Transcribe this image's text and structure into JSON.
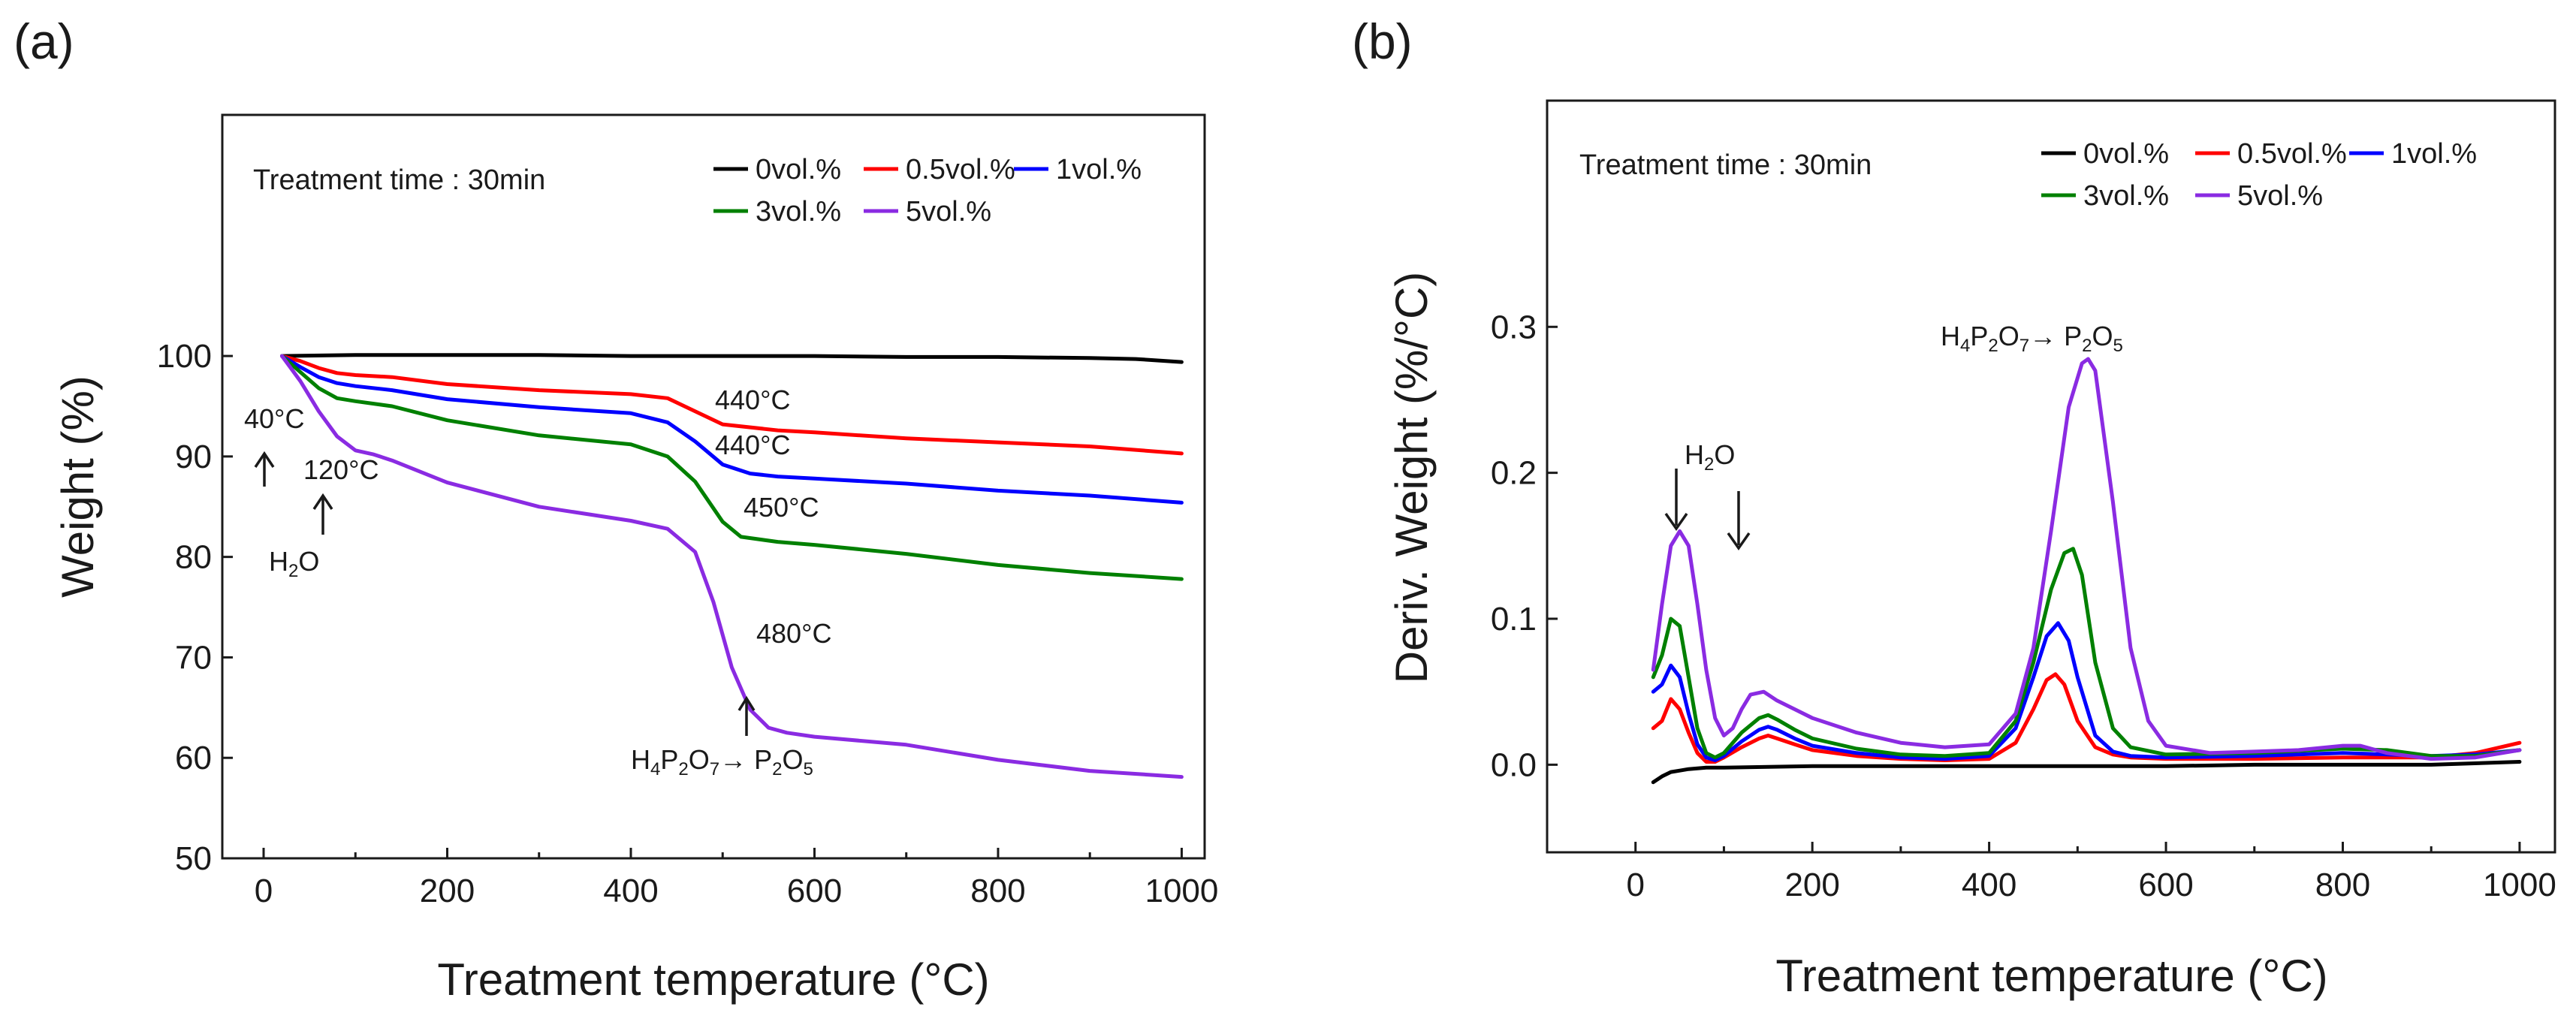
{
  "chart_data": [
    {
      "type": "line",
      "panel_label": "(a)",
      "title": "",
      "xlabel": "Treatment temperature (°C)",
      "ylabel": "Weight (%)",
      "xlim": [
        -45,
        1025
      ],
      "ylim": [
        50,
        124
      ],
      "xticks": [
        0,
        200,
        400,
        600,
        800,
        1000
      ],
      "yticks": [
        50,
        60,
        70,
        80,
        90,
        100
      ],
      "grid": false,
      "legend_position": "top-right",
      "legend_title": "Treatment time : 30min",
      "series": [
        {
          "name": "0vol.%",
          "color": "#000000",
          "x": [
            20,
            100,
            200,
            300,
            400,
            500,
            600,
            700,
            800,
            900,
            950,
            1000
          ],
          "y": [
            100,
            100.1,
            100.1,
            100.1,
            100,
            100,
            100,
            99.9,
            99.9,
            99.8,
            99.7,
            99.4
          ]
        },
        {
          "name": "0.5vol.%",
          "color": "#ff0000",
          "x": [
            20,
            40,
            60,
            80,
            100,
            140,
            200,
            300,
            400,
            440,
            470,
            500,
            560,
            600,
            700,
            800,
            900,
            1000
          ],
          "y": [
            100,
            99.5,
            98.8,
            98.3,
            98.1,
            97.9,
            97.2,
            96.6,
            96.2,
            95.8,
            94.5,
            93.2,
            92.6,
            92.4,
            91.8,
            91.4,
            91,
            90.3
          ]
        },
        {
          "name": "1vol.%",
          "color": "#0000ff",
          "x": [
            20,
            40,
            60,
            80,
            100,
            140,
            200,
            300,
            400,
            440,
            470,
            500,
            530,
            560,
            600,
            700,
            800,
            900,
            1000
          ],
          "y": [
            100,
            98.9,
            97.9,
            97.3,
            97,
            96.6,
            95.7,
            94.9,
            94.3,
            93.4,
            91.5,
            89.2,
            88.3,
            88,
            87.8,
            87.3,
            86.6,
            86.1,
            85.4
          ]
        },
        {
          "name": "3vol.%",
          "color": "#008000",
          "x": [
            20,
            40,
            60,
            80,
            100,
            140,
            200,
            300,
            400,
            440,
            470,
            500,
            520,
            560,
            600,
            700,
            800,
            900,
            1000
          ],
          "y": [
            100,
            98.4,
            96.8,
            95.8,
            95.5,
            95,
            93.6,
            92.1,
            91.2,
            90,
            87.5,
            83.5,
            82,
            81.5,
            81.2,
            80.3,
            79.2,
            78.4,
            77.8
          ]
        },
        {
          "name": "5vol.%",
          "color": "#8a2be2",
          "x": [
            20,
            40,
            60,
            80,
            100,
            120,
            140,
            200,
            300,
            400,
            440,
            470,
            490,
            510,
            530,
            550,
            570,
            600,
            700,
            800,
            900,
            1000
          ],
          "y": [
            100,
            97.5,
            94.5,
            92,
            90.6,
            90.2,
            89.6,
            87.4,
            85,
            83.6,
            82.8,
            80.5,
            75.5,
            69,
            64.8,
            63,
            62.5,
            62.1,
            61.3,
            59.8,
            58.7,
            58.1
          ]
        }
      ],
      "annotations": [
        {
          "text": "440°C",
          "x": 500,
          "y": 93.2
        },
        {
          "text": "440°C",
          "x": 500,
          "y": 89.2
        },
        {
          "text": "450°C",
          "x": 520,
          "y": 82
        },
        {
          "text": "480°C",
          "x": 530,
          "y": 64.8
        },
        {
          "text": "40°C",
          "x": 40,
          "y": 98
        },
        {
          "text": "120°C",
          "x": 120,
          "y": 90.2
        },
        {
          "text": "H2O"
        },
        {
          "text": "H4P2O7→ P2O5"
        }
      ]
    },
    {
      "type": "line",
      "panel_label": "(b)",
      "title": "",
      "xlabel": "Treatment temperature (°C)",
      "ylabel": "Deriv. Weight (%/°C)",
      "xlim": [
        -100,
        1040
      ],
      "ylim": [
        -0.06,
        0.455
      ],
      "xticks": [
        0,
        200,
        400,
        600,
        800,
        1000
      ],
      "yticks": [
        0.0,
        0.1,
        0.2,
        0.3
      ],
      "grid": false,
      "legend_position": "top-right",
      "legend_title": "Treatment time : 30min",
      "series": [
        {
          "name": "0vol.%",
          "color": "#000000",
          "x": [
            20,
            30,
            40,
            50,
            60,
            80,
            100,
            200,
            300,
            400,
            500,
            600,
            700,
            800,
            900,
            1000
          ],
          "y": [
            -0.012,
            -0.008,
            -0.005,
            -0.004,
            -0.003,
            -0.002,
            -0.002,
            -0.001,
            -0.001,
            -0.001,
            -0.001,
            -0.001,
            0,
            0,
            0,
            0.002
          ]
        },
        {
          "name": "0.5vol.%",
          "color": "#ff0000",
          "x": [
            20,
            30,
            40,
            50,
            60,
            70,
            80,
            90,
            100,
            120,
            140,
            150,
            160,
            180,
            200,
            250,
            300,
            350,
            400,
            430,
            450,
            465,
            475,
            485,
            500,
            520,
            540,
            560,
            600,
            700,
            800,
            900,
            950,
            1000
          ],
          "y": [
            0.025,
            0.03,
            0.045,
            0.038,
            0.022,
            0.008,
            0.002,
            0.002,
            0.005,
            0.012,
            0.018,
            0.02,
            0.018,
            0.014,
            0.01,
            0.006,
            0.004,
            0.003,
            0.004,
            0.015,
            0.038,
            0.058,
            0.062,
            0.055,
            0.03,
            0.012,
            0.007,
            0.005,
            0.004,
            0.004,
            0.005,
            0.005,
            0.008,
            0.015
          ]
        },
        {
          "name": "1vol.%",
          "color": "#0000ff",
          "x": [
            20,
            30,
            40,
            50,
            60,
            70,
            80,
            90,
            100,
            120,
            140,
            150,
            160,
            180,
            200,
            250,
            300,
            350,
            400,
            430,
            450,
            465,
            478,
            490,
            500,
            520,
            540,
            560,
            600,
            700,
            800,
            900,
            950,
            1000
          ],
          "y": [
            0.05,
            0.055,
            0.068,
            0.06,
            0.035,
            0.014,
            0.005,
            0.003,
            0.006,
            0.016,
            0.024,
            0.026,
            0.024,
            0.018,
            0.013,
            0.008,
            0.005,
            0.004,
            0.006,
            0.025,
            0.06,
            0.088,
            0.097,
            0.085,
            0.06,
            0.02,
            0.009,
            0.006,
            0.005,
            0.006,
            0.008,
            0.006,
            0.007,
            0.01
          ]
        },
        {
          "name": "3vol.%",
          "color": "#008000",
          "x": [
            20,
            30,
            40,
            50,
            60,
            70,
            80,
            90,
            100,
            120,
            140,
            150,
            160,
            180,
            200,
            250,
            300,
            350,
            400,
            430,
            450,
            470,
            485,
            495,
            505,
            520,
            540,
            560,
            600,
            700,
            800,
            850,
            900,
            950,
            1000
          ],
          "y": [
            0.06,
            0.075,
            0.1,
            0.095,
            0.06,
            0.025,
            0.008,
            0.005,
            0.008,
            0.022,
            0.032,
            0.034,
            0.031,
            0.024,
            0.018,
            0.011,
            0.007,
            0.006,
            0.008,
            0.03,
            0.07,
            0.12,
            0.145,
            0.148,
            0.13,
            0.07,
            0.025,
            0.012,
            0.007,
            0.008,
            0.011,
            0.01,
            0.006,
            0.006,
            0.01
          ]
        },
        {
          "name": "5vol.%",
          "color": "#8a2be2",
          "x": [
            20,
            30,
            40,
            50,
            60,
            70,
            80,
            90,
            100,
            110,
            120,
            130,
            145,
            160,
            180,
            200,
            250,
            300,
            350,
            400,
            430,
            450,
            470,
            490,
            505,
            512,
            520,
            540,
            560,
            580,
            600,
            650,
            700,
            750,
            800,
            820,
            850,
            900,
            950,
            1000
          ],
          "y": [
            0.065,
            0.11,
            0.15,
            0.16,
            0.15,
            0.11,
            0.065,
            0.032,
            0.02,
            0.025,
            0.038,
            0.048,
            0.05,
            0.044,
            0.038,
            0.032,
            0.022,
            0.015,
            0.012,
            0.014,
            0.035,
            0.08,
            0.16,
            0.245,
            0.275,
            0.278,
            0.27,
            0.18,
            0.08,
            0.03,
            0.013,
            0.008,
            0.009,
            0.01,
            0.013,
            0.013,
            0.008,
            0.004,
            0.005,
            0.01
          ]
        }
      ],
      "annotations": [
        {
          "text": "H2O"
        },
        {
          "text": "H4P2O7→ P2O5",
          "x": 512,
          "y": 0.278
        }
      ]
    }
  ]
}
